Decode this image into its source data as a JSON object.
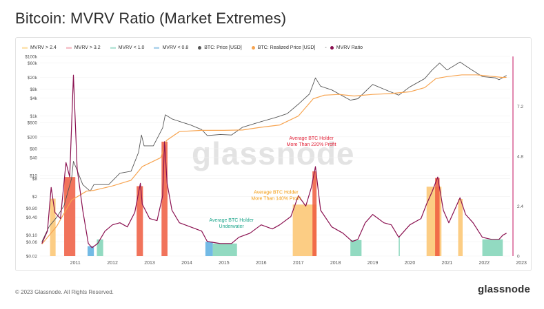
{
  "page": {
    "title": "Bitcoin: MVRV Ratio (Market Extremes)",
    "copyright": "© 2023 Glassnode. All Rights Reserved.",
    "brand": "glassnode",
    "watermark": "glassnode"
  },
  "legend": [
    {
      "label": "MVRV > 2.4",
      "color": "#fde6b8",
      "kind": "band"
    },
    {
      "label": "MVRV > 3.2",
      "color": "#f7c9d0",
      "kind": "band"
    },
    {
      "label": "MVRV < 1.0",
      "color": "#bfe8dc",
      "kind": "band"
    },
    {
      "label": "MVRV < 0.8",
      "color": "#b7d8ee",
      "kind": "band"
    },
    {
      "label": "BTC: Price [USD]",
      "color": "#555555",
      "kind": "dot"
    },
    {
      "label": "BTC: Realized Price [USD]",
      "color": "#f7a450",
      "kind": "dot"
    },
    {
      "label": "MVRV Ratio",
      "color": "#8a1050",
      "kind": "dot",
      "prefix": "-"
    }
  ],
  "colors": {
    "price": "#555555",
    "realized": "#f7a450",
    "mvrv": "#8a1050",
    "band_low": "#7fd4b6",
    "band_vlow": "#5aaee0",
    "band_high": "#fbc46f",
    "band_vhigh": "#ee5a3e",
    "annot_red": "#e2243a",
    "annot_orange": "#f39c12",
    "annot_teal": "#1aa58a",
    "right_axis": "#c3105f"
  },
  "chart_data": {
    "type": "line",
    "title": "Bitcoin: MVRV Ratio (Market Extremes)",
    "x_ticks": [
      "2011",
      "2012",
      "2013",
      "2014",
      "2015",
      "2016",
      "2017",
      "2018",
      "2019",
      "2020",
      "2021",
      "2022",
      "2023"
    ],
    "left_axis": {
      "scale": "log",
      "ticks": [
        "$100k",
        "$60k",
        "$20k",
        "$8k",
        "$4k",
        "$1k",
        "$600",
        "$200",
        "$80",
        "$40",
        "$10",
        "$8",
        "$2",
        "$0.80",
        "$0.40",
        "$0.10",
        "$0.06",
        "$0.02"
      ],
      "tick_values": [
        100000,
        60000,
        20000,
        8000,
        4000,
        1000,
        600,
        200,
        80,
        40,
        10,
        8,
        2,
        0.8,
        0.4,
        0.1,
        0.06,
        0.02
      ],
      "range": [
        0.02,
        100000
      ]
    },
    "right_axis": {
      "scale": "linear",
      "ticks": [
        "7.2",
        "4.8",
        "2.4",
        "0"
      ],
      "tick_values": [
        7.2,
        4.8,
        2.4,
        0
      ],
      "range": [
        0,
        9.6
      ]
    },
    "series": [
      {
        "name": "BTC: Price [USD]",
        "axis": "left",
        "points": [
          [
            2010.6,
            0.06
          ],
          [
            2010.8,
            0.2
          ],
          [
            2011.0,
            0.4
          ],
          [
            2011.2,
            1
          ],
          [
            2011.4,
            8
          ],
          [
            2011.45,
            30
          ],
          [
            2011.55,
            15
          ],
          [
            2011.7,
            5
          ],
          [
            2011.9,
            3
          ],
          [
            2012.0,
            5
          ],
          [
            2012.4,
            5
          ],
          [
            2012.7,
            12
          ],
          [
            2013.0,
            14
          ],
          [
            2013.2,
            60
          ],
          [
            2013.28,
            230
          ],
          [
            2013.35,
            100
          ],
          [
            2013.6,
            100
          ],
          [
            2013.85,
            400
          ],
          [
            2013.92,
            1100
          ],
          [
            2014.1,
            800
          ],
          [
            2014.4,
            600
          ],
          [
            2014.6,
            500
          ],
          [
            2014.9,
            350
          ],
          [
            2015.05,
            220
          ],
          [
            2015.4,
            240
          ],
          [
            2015.7,
            230
          ],
          [
            2016.0,
            420
          ],
          [
            2016.5,
            650
          ],
          [
            2016.9,
            900
          ],
          [
            2017.2,
            1200
          ],
          [
            2017.5,
            2500
          ],
          [
            2017.8,
            5500
          ],
          [
            2017.96,
            19000
          ],
          [
            2018.1,
            10000
          ],
          [
            2018.4,
            7500
          ],
          [
            2018.9,
            3400
          ],
          [
            2019.1,
            3800
          ],
          [
            2019.5,
            11500
          ],
          [
            2019.8,
            8000
          ],
          [
            2020.2,
            5000
          ],
          [
            2020.5,
            9500
          ],
          [
            2020.9,
            18000
          ],
          [
            2021.1,
            35000
          ],
          [
            2021.3,
            60000
          ],
          [
            2021.5,
            35000
          ],
          [
            2021.85,
            65000
          ],
          [
            2022.1,
            40000
          ],
          [
            2022.45,
            21000
          ],
          [
            2022.8,
            19000
          ],
          [
            2022.9,
            16500
          ],
          [
            2023.1,
            23000
          ]
        ]
      },
      {
        "name": "BTC: Realized Price [USD]",
        "axis": "left",
        "points": [
          [
            2010.6,
            0.05
          ],
          [
            2011.0,
            0.2
          ],
          [
            2011.4,
            1.5
          ],
          [
            2011.8,
            3
          ],
          [
            2012.0,
            3.2
          ],
          [
            2012.5,
            4.5
          ],
          [
            2013.0,
            7
          ],
          [
            2013.3,
            20
          ],
          [
            2013.8,
            40
          ],
          [
            2013.95,
            150
          ],
          [
            2014.3,
            300
          ],
          [
            2014.9,
            330
          ],
          [
            2015.5,
            330
          ],
          [
            2016.0,
            340
          ],
          [
            2016.5,
            420
          ],
          [
            2017.0,
            500
          ],
          [
            2017.5,
            1000
          ],
          [
            2017.9,
            3800
          ],
          [
            2018.2,
            5000
          ],
          [
            2018.6,
            5300
          ],
          [
            2019.0,
            4700
          ],
          [
            2019.5,
            5300
          ],
          [
            2020.0,
            5700
          ],
          [
            2020.5,
            6500
          ],
          [
            2020.9,
            9000
          ],
          [
            2021.2,
            18000
          ],
          [
            2021.5,
            21000
          ],
          [
            2021.9,
            24000
          ],
          [
            2022.3,
            24000
          ],
          [
            2022.7,
            21500
          ],
          [
            2023.0,
            19600
          ],
          [
            2023.1,
            19800
          ]
        ]
      },
      {
        "name": "MVRV Ratio",
        "axis": "right",
        "points": [
          [
            2010.6,
            0.6
          ],
          [
            2010.75,
            1.2
          ],
          [
            2010.85,
            3.3
          ],
          [
            2010.95,
            2.1
          ],
          [
            2011.1,
            1.8
          ],
          [
            2011.25,
            4.5
          ],
          [
            2011.35,
            3.8
          ],
          [
            2011.45,
            8.7
          ],
          [
            2011.55,
            4.2
          ],
          [
            2011.7,
            2.2
          ],
          [
            2011.85,
            0.6
          ],
          [
            2011.95,
            0.4
          ],
          [
            2012.1,
            0.6
          ],
          [
            2012.3,
            1.2
          ],
          [
            2012.5,
            1.5
          ],
          [
            2012.7,
            1.6
          ],
          [
            2012.9,
            1.4
          ],
          [
            2013.1,
            2.1
          ],
          [
            2013.25,
            3.5
          ],
          [
            2013.3,
            2.5
          ],
          [
            2013.5,
            1.8
          ],
          [
            2013.7,
            1.7
          ],
          [
            2013.85,
            2.9
          ],
          [
            2013.9,
            5.5
          ],
          [
            2013.97,
            3.5
          ],
          [
            2014.1,
            2.2
          ],
          [
            2014.3,
            1.6
          ],
          [
            2014.6,
            1.4
          ],
          [
            2014.9,
            1.2
          ],
          [
            2015.05,
            0.7
          ],
          [
            2015.4,
            0.6
          ],
          [
            2015.7,
            0.6
          ],
          [
            2015.9,
            0.9
          ],
          [
            2016.2,
            1.1
          ],
          [
            2016.5,
            1.5
          ],
          [
            2016.8,
            1.3
          ],
          [
            2017.0,
            1.5
          ],
          [
            2017.3,
            1.9
          ],
          [
            2017.5,
            2.9
          ],
          [
            2017.7,
            2.4
          ],
          [
            2017.85,
            3.3
          ],
          [
            2017.96,
            4.3
          ],
          [
            2018.1,
            2.2
          ],
          [
            2018.4,
            1.4
          ],
          [
            2018.7,
            1.1
          ],
          [
            2018.95,
            0.7
          ],
          [
            2019.1,
            0.8
          ],
          [
            2019.3,
            1.6
          ],
          [
            2019.5,
            2.0
          ],
          [
            2019.8,
            1.6
          ],
          [
            2020.0,
            1.5
          ],
          [
            2020.2,
            0.9
          ],
          [
            2020.5,
            1.5
          ],
          [
            2020.8,
            1.8
          ],
          [
            2020.95,
            2.5
          ],
          [
            2021.1,
            3.1
          ],
          [
            2021.25,
            3.8
          ],
          [
            2021.4,
            2.2
          ],
          [
            2021.55,
            1.6
          ],
          [
            2021.85,
            2.8
          ],
          [
            2022.0,
            2.0
          ],
          [
            2022.2,
            1.6
          ],
          [
            2022.45,
            0.9
          ],
          [
            2022.7,
            0.8
          ],
          [
            2022.9,
            0.8
          ],
          [
            2023.0,
            1.0
          ],
          [
            2023.1,
            1.1
          ]
        ]
      }
    ],
    "bands": [
      {
        "from": 2010.82,
        "to": 2010.97,
        "level": "MVRV > 2.4"
      },
      {
        "from": 2011.2,
        "to": 2011.5,
        "level": "MVRV > 3.2"
      },
      {
        "from": 2011.83,
        "to": 2012.0,
        "level": "MVRV < 0.8"
      },
      {
        "from": 2012.08,
        "to": 2012.25,
        "level": "MVRV < 1.0"
      },
      {
        "from": 2013.15,
        "to": 2013.32,
        "level": "MVRV > 3.2"
      },
      {
        "from": 2013.82,
        "to": 2013.98,
        "level": "MVRV > 3.2"
      },
      {
        "from": 2015.0,
        "to": 2015.2,
        "level": "MVRV < 0.8"
      },
      {
        "from": 2015.2,
        "to": 2015.85,
        "level": "MVRV < 1.0"
      },
      {
        "from": 2017.35,
        "to": 2017.99,
        "level": "MVRV > 2.4"
      },
      {
        "from": 2017.88,
        "to": 2017.99,
        "level": "MVRV > 3.2"
      },
      {
        "from": 2018.9,
        "to": 2019.2,
        "level": "MVRV < 1.0"
      },
      {
        "from": 2020.2,
        "to": 2020.23,
        "level": "MVRV < 1.0"
      },
      {
        "from": 2020.95,
        "to": 2021.35,
        "level": "MVRV > 2.4"
      },
      {
        "from": 2021.18,
        "to": 2021.3,
        "level": "MVRV > 3.2"
      },
      {
        "from": 2021.8,
        "to": 2021.92,
        "level": "MVRV > 2.4"
      },
      {
        "from": 2022.45,
        "to": 2023.0,
        "level": "MVRV < 1.0"
      }
    ],
    "annotations": [
      {
        "lines": [
          "Average BTC Holder",
          "More Than 220% Profit"
        ],
        "color_key": "annot_red",
        "x": 2017.85,
        "y_right": 5.6
      },
      {
        "lines": [
          "Average BTC Holder",
          "More Than 140% Profit"
        ],
        "color_key": "annot_orange",
        "x": 2016.9,
        "y_right": 3.0
      },
      {
        "lines": [
          "Average BTC Holder",
          "Underwater"
        ],
        "color_key": "annot_teal",
        "x": 2015.7,
        "y_right": 1.65
      }
    ],
    "grid": true,
    "legend_position": "top-left"
  }
}
